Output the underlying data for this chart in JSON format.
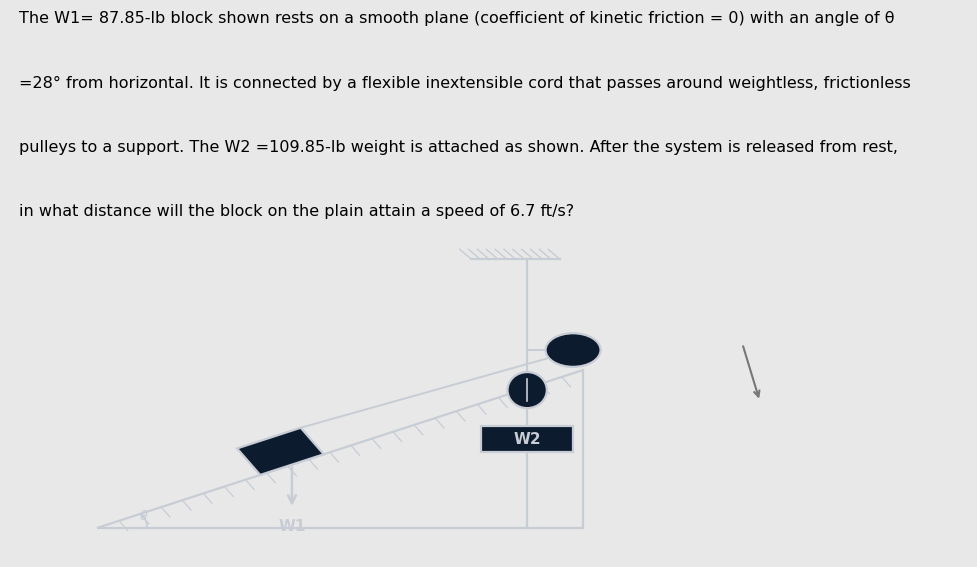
{
  "bg_color": "#e8e8e8",
  "diagram_bg": "#0d1b2e",
  "text_color": "#000000",
  "diagram_line_color": "#c8cdd5",
  "title_lines": [
    "The W1= 87.85-lb block shown rests on a smooth plane (coefficient of kinetic friction = 0) with an angle of θ",
    "=28° from horizontal. It is connected by a flexible inextensible cord that passes around weightless, frictionless",
    "pulleys to a support. The W2 =109.85-lb weight is attached as shown. After the system is released from rest,",
    "in what distance will the block on the plain attain a speed of 6.7 ft/s?"
  ],
  "title_fontsize": 11.5,
  "w1_label": "W1",
  "w2_label": "W2",
  "theta_label": "θ",
  "theta_deg": 28
}
